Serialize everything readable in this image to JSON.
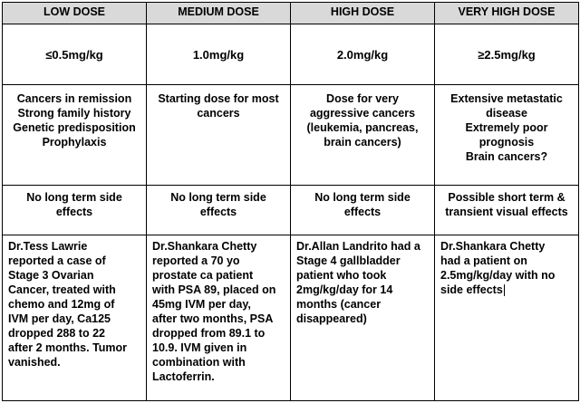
{
  "headers": [
    "LOW DOSE",
    "MEDIUM DOSE",
    "HIGH DOSE",
    "VERY HIGH DOSE"
  ],
  "doses": [
    "≤0.5mg/kg",
    "1.0mg/kg",
    "2.0mg/kg",
    "≥2.5mg/kg"
  ],
  "uses": [
    [
      "Cancers in remission",
      "Strong family history",
      "Genetic predisposition",
      "Prophylaxis"
    ],
    [
      "Starting dose for most",
      "cancers"
    ],
    [
      "Dose for very",
      "aggressive cancers",
      "(leukemia, pancreas,",
      "brain cancers)"
    ],
    [
      "Extensive metastatic",
      "disease",
      "Extremely poor",
      "prognosis",
      "Brain cancers?"
    ]
  ],
  "side_effects": [
    [
      "No long term side",
      "effects"
    ],
    [
      "No long term side",
      "effects"
    ],
    [
      "No long term side",
      "effects"
    ],
    [
      "Possible short term &",
      "transient visual effects"
    ]
  ],
  "cases": [
    [
      "Dr.Tess Lawrie",
      "reported a case of",
      "Stage 3 Ovarian",
      "Cancer, treated with",
      "chemo and 12mg of",
      "IVM per day, Ca125",
      "dropped 288 to 22",
      "after 2 months. Tumor",
      "vanished."
    ],
    [
      "Dr.Shankara Chetty",
      "reported a 70 yo",
      "prostate ca patient",
      "with PSA 89, placed on",
      "45mg IVM per day,",
      "after two months, PSA",
      "dropped from 89.1 to",
      "10.9. IVM given in",
      "combination with",
      "Lactoferrin."
    ],
    [
      "Dr.Allan Landrito had a",
      "Stage 4 gallbladder",
      "patient who took",
      "2mg/kg/day for 14",
      "months (cancer",
      "disappeared)"
    ],
    [
      "Dr.Shankara Chetty",
      "had a patient on",
      "2.5mg/kg/day with no",
      "side effects"
    ]
  ]
}
